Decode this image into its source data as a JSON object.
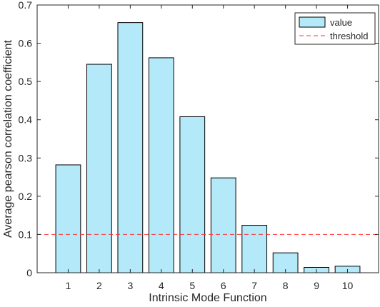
{
  "chart_data": {
    "type": "bar",
    "title": "",
    "xlabel": "Intrinsic Mode Function",
    "ylabel": "Average pearson correlation coefficient",
    "categories": [
      "1",
      "2",
      "3",
      "4",
      "5",
      "6",
      "7",
      "8",
      "9",
      "10"
    ],
    "series": [
      {
        "name": "value",
        "values": [
          0.282,
          0.545,
          0.654,
          0.562,
          0.408,
          0.248,
          0.124,
          0.052,
          0.014,
          0.017
        ]
      }
    ],
    "threshold": {
      "name": "threshold",
      "value": 0.1
    },
    "ylim": [
      0,
      0.7
    ],
    "yticks": [
      "0",
      "0.1",
      "0.2",
      "0.3",
      "0.4",
      "0.5",
      "0.6",
      "0.7"
    ],
    "xlim": [
      0,
      11
    ],
    "grid": false,
    "legend": "top-right",
    "colors": {
      "bar_fill": "#b3e9f8",
      "bar_edge": "#000000",
      "threshold": "#ff3333",
      "axis": "#262626"
    }
  }
}
